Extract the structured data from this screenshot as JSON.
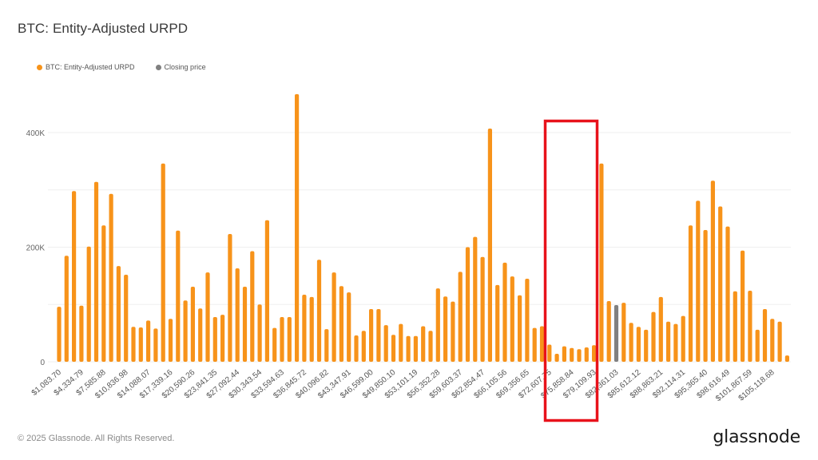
{
  "header": {
    "title": "BTC: Entity-Adjusted URPD"
  },
  "legend": [
    {
      "label": "BTC: Entity-Adjusted URPD",
      "color": "#f7931a"
    },
    {
      "label": "Closing price",
      "color": "#808080"
    }
  ],
  "footer": {
    "copyright": "© 2025 Glassnode. All Rights Reserved.",
    "brand": "glassnode"
  },
  "annotation": {
    "type": "highlight-box",
    "color": "#e8121b",
    "covers_labels": [
      "$72,607.75",
      "$75,858.84",
      "$79,109.93",
      "$82,361.03"
    ]
  },
  "chart_data": {
    "type": "bar",
    "title": "BTC: Entity-Adjusted URPD",
    "xlabel": "",
    "ylabel": "",
    "ylim": [
      0,
      480000
    ],
    "yticks": [
      {
        "value": 0,
        "label": "0"
      },
      {
        "value": 200000,
        "label": "200K"
      },
      {
        "value": 400000,
        "label": "400K"
      }
    ],
    "gridlines_at": [
      0,
      100000,
      200000,
      300000,
      400000
    ],
    "grid": true,
    "legend_position": "top-left",
    "bucket_width": 1083.7,
    "xtick_every": 3,
    "xtick_labels": [
      "$1,083.70",
      "$4,334.79",
      "$7,585.88",
      "$10,836.98",
      "$14,088.07",
      "$17,339.16",
      "$20,590.26",
      "$23,841.35",
      "$27,092.44",
      "$30,343.54",
      "$33,594.63",
      "$36,845.72",
      "$40,096.82",
      "$43,347.91",
      "$46,599.00",
      "$49,850.10",
      "$53,101.19",
      "$56,352.28",
      "$59,603.37",
      "$62,854.47",
      "$66,105.56",
      "$69,356.65",
      "$72,607.75",
      "$75,858.84",
      "$79,109.93",
      "$82,361.03",
      "$85,612.12",
      "$88,863.21",
      "$92,114.31",
      "$95,365.40",
      "$98,616.49",
      "$101,867.59",
      "$105,118.68"
    ],
    "closing_price_bar_index": 75,
    "series": [
      {
        "name": "BTC: Entity-Adjusted URPD",
        "color": "#f7931a",
        "values": [
          96000,
          185000,
          298000,
          98000,
          201000,
          314000,
          238000,
          293000,
          167000,
          152000,
          61000,
          60000,
          72000,
          58000,
          346000,
          75000,
          229000,
          107000,
          131000,
          93000,
          156000,
          78000,
          82000,
          223000,
          163000,
          131000,
          193000,
          100000,
          247000,
          59000,
          78000,
          78000,
          467000,
          117000,
          113000,
          178000,
          57000,
          156000,
          132000,
          121000,
          46000,
          54000,
          92000,
          92000,
          64000,
          47000,
          66000,
          45000,
          45000,
          62000,
          54000,
          128000,
          114000,
          105000,
          157000,
          200000,
          218000,
          183000,
          407000,
          134000,
          173000,
          149000,
          116000,
          145000,
          59000,
          62000,
          30000,
          14000,
          27000,
          24000,
          22000,
          25000,
          29000,
          346000,
          106000,
          99000,
          103000,
          68000,
          61000,
          56000,
          87000,
          113000,
          70000,
          66000,
          80000,
          238000,
          281000,
          230000,
          316000,
          271000,
          236000,
          123000,
          194000,
          124000,
          56000,
          92000,
          75000,
          70000,
          11000
        ]
      },
      {
        "name": "Closing price",
        "color": "#808080",
        "bar_index": 75,
        "value": 99000
      }
    ]
  }
}
